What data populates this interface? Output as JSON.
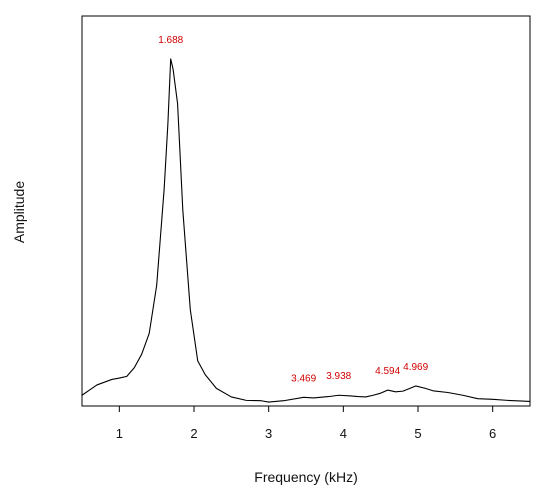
{
  "chart_data": {
    "type": "line",
    "title": "",
    "xlabel": "Frequency (kHz)",
    "ylabel": "Amplitude",
    "xlim": [
      0.5,
      6.5
    ],
    "ylim": [
      0,
      1
    ],
    "grid": false,
    "x_ticks": [
      "1",
      "2",
      "3",
      "4",
      "5",
      "6"
    ],
    "series": [
      {
        "color": "#000000",
        "points": [
          [
            0.5,
            0.02
          ],
          [
            0.6,
            0.035
          ],
          [
            0.7,
            0.05
          ],
          [
            0.8,
            0.058
          ],
          [
            0.9,
            0.066
          ],
          [
            1.0,
            0.07
          ],
          [
            1.1,
            0.075
          ],
          [
            1.2,
            0.1
          ],
          [
            1.3,
            0.14
          ],
          [
            1.4,
            0.2
          ],
          [
            1.5,
            0.34
          ],
          [
            1.6,
            0.62
          ],
          [
            1.65,
            0.81
          ],
          [
            1.688,
            1.0
          ],
          [
            1.72,
            0.97
          ],
          [
            1.78,
            0.87
          ],
          [
            1.85,
            0.56
          ],
          [
            1.95,
            0.27
          ],
          [
            2.05,
            0.12
          ],
          [
            2.15,
            0.08
          ],
          [
            2.3,
            0.04
          ],
          [
            2.5,
            0.015
          ],
          [
            2.7,
            0.005
          ],
          [
            2.9,
            0.004
          ],
          [
            3.0,
            0.0
          ],
          [
            3.2,
            0.004
          ],
          [
            3.469,
            0.014
          ],
          [
            3.6,
            0.012
          ],
          [
            3.8,
            0.016
          ],
          [
            3.938,
            0.02
          ],
          [
            4.1,
            0.018
          ],
          [
            4.2,
            0.016
          ],
          [
            4.3,
            0.015
          ],
          [
            4.4,
            0.02
          ],
          [
            4.5,
            0.026
          ],
          [
            4.594,
            0.035
          ],
          [
            4.7,
            0.03
          ],
          [
            4.8,
            0.032
          ],
          [
            4.969,
            0.047
          ],
          [
            5.1,
            0.04
          ],
          [
            5.2,
            0.033
          ],
          [
            5.4,
            0.028
          ],
          [
            5.6,
            0.02
          ],
          [
            5.8,
            0.01
          ],
          [
            6.0,
            0.008
          ],
          [
            6.2,
            0.005
          ],
          [
            6.4,
            0.003
          ],
          [
            6.5,
            0.002
          ]
        ]
      }
    ],
    "annotations": [
      {
        "x": 1.688,
        "y": 1.0,
        "label": "1.688",
        "color": "#d10000"
      },
      {
        "x": 3.469,
        "y": 0.014,
        "label": "3.469",
        "color": "#d10000"
      },
      {
        "x": 3.938,
        "y": 0.02,
        "label": "3.938",
        "color": "#d10000"
      },
      {
        "x": 4.594,
        "y": 0.035,
        "label": "4.594",
        "color": "#d10000"
      },
      {
        "x": 4.969,
        "y": 0.047,
        "label": "4.969",
        "color": "#d10000"
      }
    ]
  }
}
